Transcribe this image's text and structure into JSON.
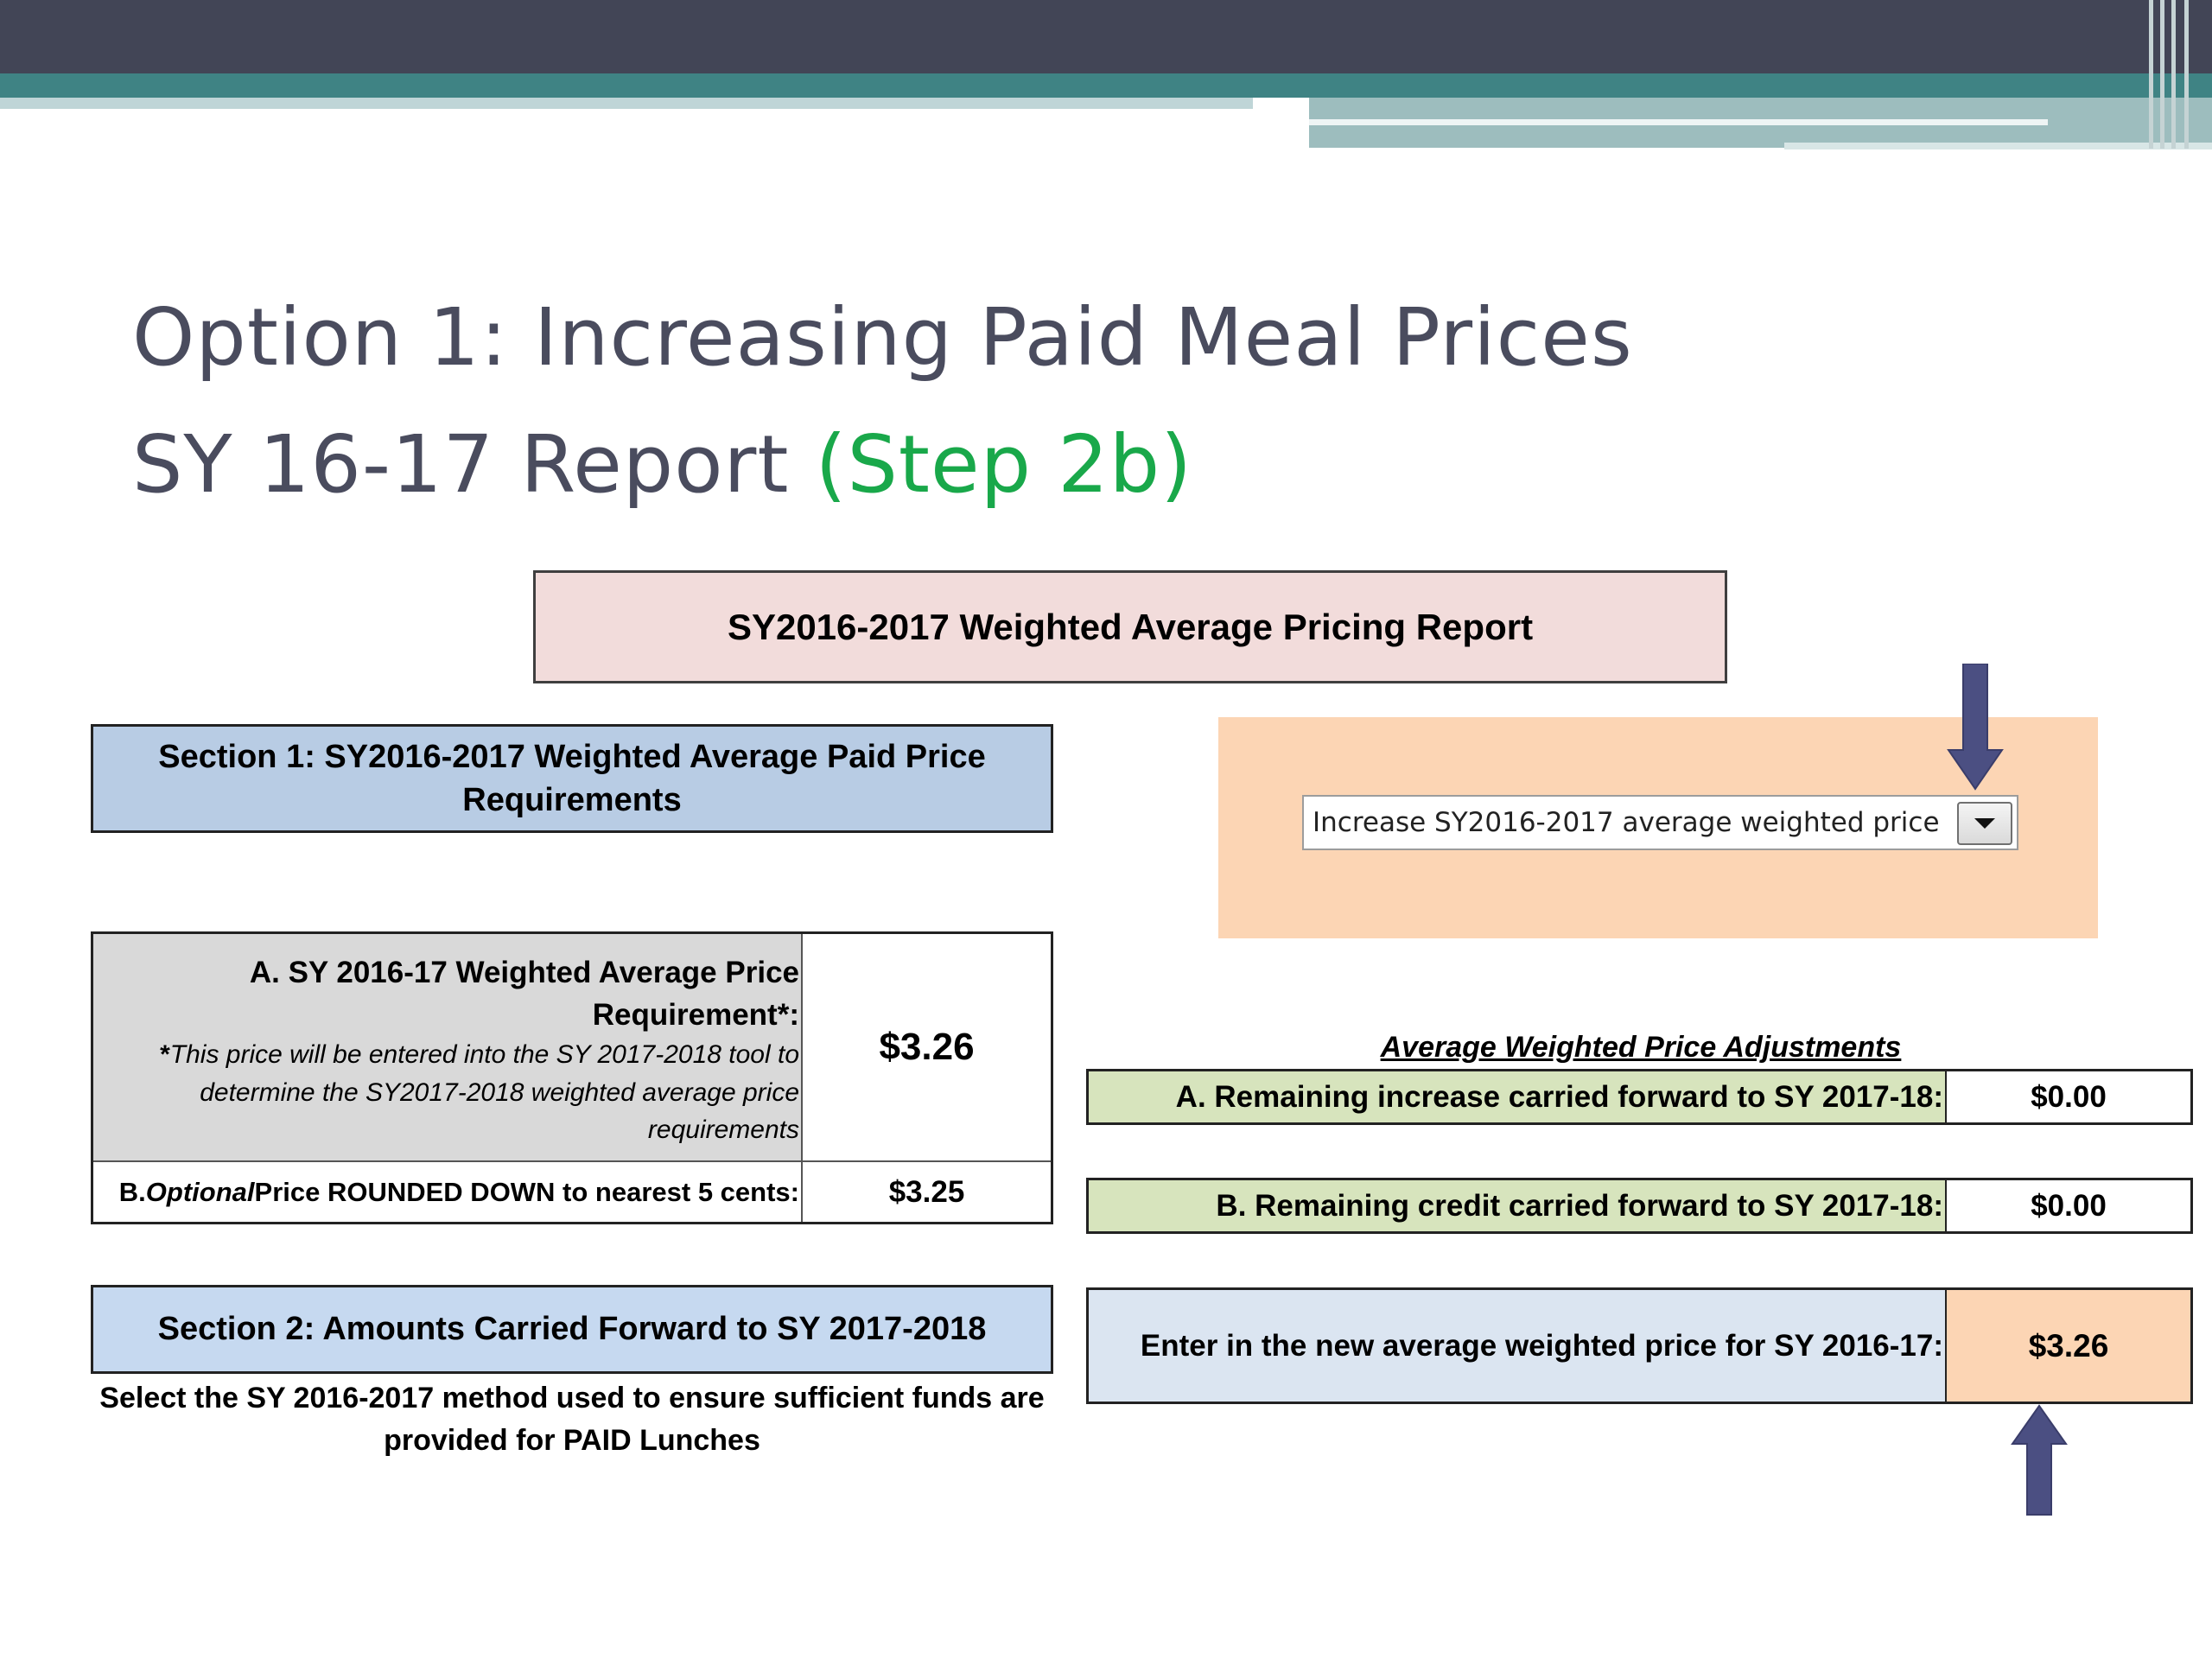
{
  "title": {
    "line1": "Option 1: Increasing Paid Meal Prices",
    "line2_main": "SY 16-17 Report ",
    "line2_highlight": "(Step 2b)"
  },
  "report": {
    "header": "SY2016-2017 Weighted Average Pricing Report",
    "section1": {
      "title_line1": "Section 1: SY2016-2017 Weighted Average Paid Price",
      "title_line2": "Requirements"
    },
    "price_table": {
      "row_a": {
        "label_line1": "A.  SY 2016-17 Weighted Average Price",
        "label_line2": "Requirement*:",
        "note_star": "*",
        "note_line1": "This price will be entered into the SY 2017-2018 tool to",
        "note_line2": "determine the SY2017-2018 weighted average price",
        "note_line3": "requirements",
        "value": "$3.26"
      },
      "row_b": {
        "prefix": "B.  ",
        "italic_word": "Optional",
        "label_rest": " Price ROUNDED DOWN to nearest 5 cents:",
        "value": "$3.25"
      }
    },
    "section2": {
      "title": "Section 2: Amounts Carried Forward to SY 2017-2018",
      "note_line1": "Select the SY 2016-2017 method used to ensure sufficient funds are",
      "note_line2": "provided for PAID Lunches"
    },
    "method_dropdown": {
      "selected": "Increase SY2016-2017 average weighted price"
    },
    "adjustments": {
      "heading": "Average Weighted Price Adjustments",
      "row_a": {
        "label": "A.  Remaining increase carried forward to SY 2017-18:",
        "value": "$0.00"
      },
      "row_b": {
        "label": "B.  Remaining credit carried forward to SY 2017-18:",
        "value": "$0.00"
      }
    },
    "new_price": {
      "label": "Enter in the new average weighted price for SY 2016-17:",
      "value": "$3.26"
    }
  },
  "colors": {
    "title_text": "#4a4c5e",
    "highlight_green": "#19a84a",
    "banner_dark": "#424556",
    "banner_teal": "#3f8384",
    "report_header_bg": "#f2dcdb",
    "section_blue": "#b8cce4",
    "panel_orange": "#fcd5b4",
    "adjust_green": "#d7e4bd",
    "arrow": "#4b4f82"
  },
  "icons": {
    "dropdown": "chevron-down-icon",
    "pointer_top": "arrow-down-icon",
    "pointer_bottom": "arrow-up-icon"
  }
}
